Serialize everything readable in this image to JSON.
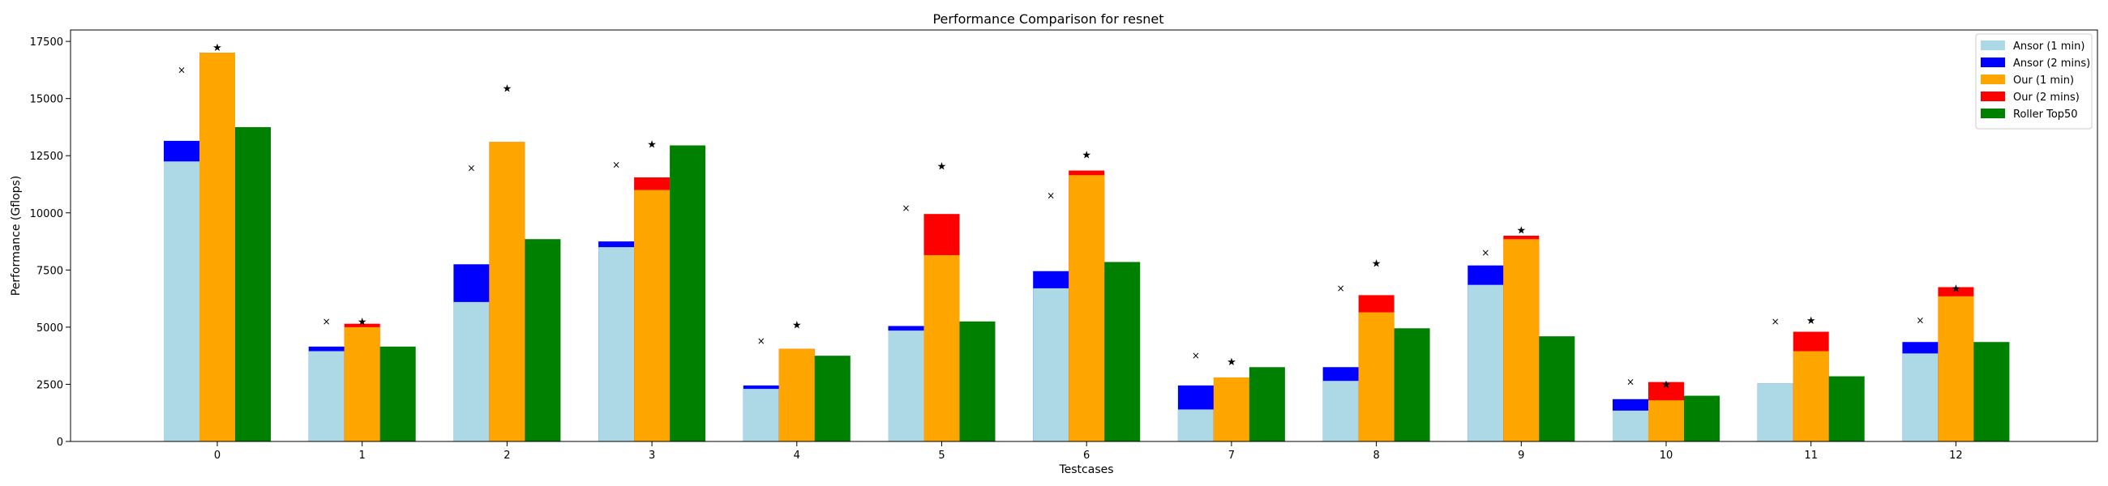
{
  "chart_data": {
    "type": "bar",
    "title": "Performance Comparison for resnet",
    "xlabel": "Testcases",
    "ylabel": "Performance (Gflops)",
    "ylim": [
      0,
      18000
    ],
    "yticks": [
      0,
      2500,
      5000,
      7500,
      10000,
      12500,
      15000,
      17500
    ],
    "categories": [
      "0",
      "1",
      "2",
      "3",
      "4",
      "5",
      "6",
      "7",
      "8",
      "9",
      "10",
      "11",
      "12"
    ],
    "legend_position": "top-right",
    "grid": false,
    "series": [
      {
        "name": "Ansor (1 min)",
        "color": "#add8e6",
        "values": [
          12250,
          3950,
          6100,
          8500,
          2300,
          4850,
          6700,
          1400,
          2650,
          6850,
          1350,
          2550,
          3850
        ]
      },
      {
        "name": "Ansor (2 mins)",
        "color": "#0000ff",
        "values": [
          13150,
          4150,
          7750,
          8750,
          2450,
          5050,
          7450,
          2450,
          3250,
          7700,
          1850,
          2550,
          4350
        ]
      },
      {
        "name": "Our (1 min)",
        "color": "#ffa500",
        "values": [
          17000,
          5000,
          13100,
          11000,
          4050,
          8150,
          11650,
          2800,
          5650,
          8850,
          1800,
          3950,
          6350
        ]
      },
      {
        "name": "Our (2 mins)",
        "color": "#ff0000",
        "values": [
          17000,
          5150,
          13100,
          11550,
          4050,
          9950,
          11850,
          2800,
          6400,
          9000,
          2600,
          4800,
          6750
        ]
      },
      {
        "name": "Roller Top50",
        "color": "#008000",
        "values": [
          13750,
          4150,
          8850,
          12950,
          3750,
          5250,
          7850,
          3250,
          4950,
          4600,
          2000,
          2850,
          4350
        ]
      }
    ],
    "markers": {
      "x_marker_values": [
        16250,
        5250,
        11950,
        12100,
        4400,
        10200,
        10750,
        3750,
        6700,
        8250,
        2600,
        5250,
        5300
      ],
      "star_marker_values": [
        17300,
        5300,
        15500,
        13050,
        5150,
        12100,
        12600,
        3550,
        7850,
        9300,
        2550,
        5350,
        6750
      ]
    }
  }
}
